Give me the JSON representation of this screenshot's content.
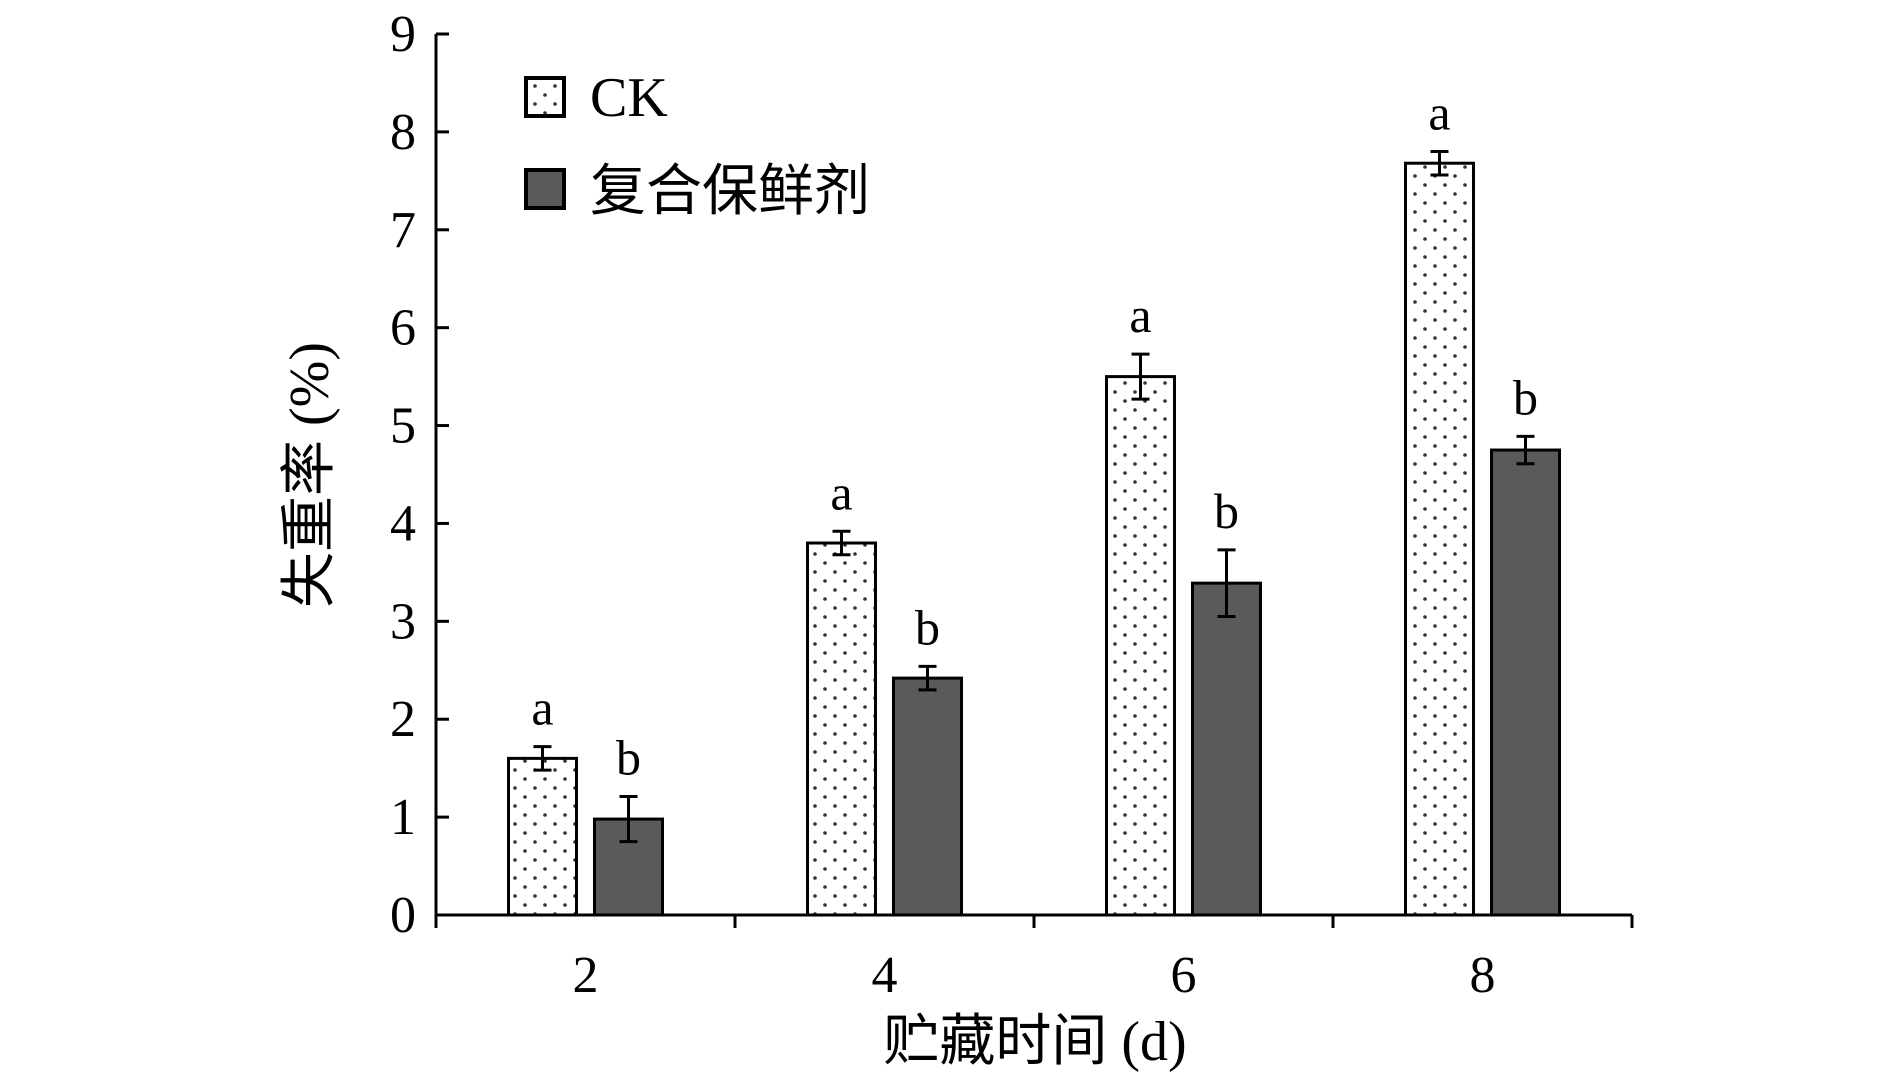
{
  "chart_data": {
    "type": "bar",
    "xlabel": "贮藏时间 (d)",
    "ylabel": "失重率 (%)",
    "categories": [
      "2",
      "4",
      "6",
      "8"
    ],
    "ylim": [
      0,
      9
    ],
    "yticks": [
      "0",
      "1",
      "2",
      "3",
      "4",
      "5",
      "6",
      "7",
      "8",
      "9"
    ],
    "legend_position": "top-left",
    "grid": false,
    "series": [
      {
        "name": "CK",
        "values": [
          1.6,
          3.8,
          5.5,
          7.68
        ],
        "errors": [
          0.12,
          0.12,
          0.23,
          0.12
        ],
        "labels": [
          "a",
          "a",
          "a",
          "a"
        ],
        "fill": "dotted-white"
      },
      {
        "name": "复合保鲜剂",
        "values": [
          0.98,
          2.42,
          3.39,
          4.75
        ],
        "errors": [
          0.23,
          0.12,
          0.34,
          0.14
        ],
        "labels": [
          "b",
          "b",
          "b",
          "b"
        ],
        "fill": "#5a5a5a"
      }
    ]
  }
}
